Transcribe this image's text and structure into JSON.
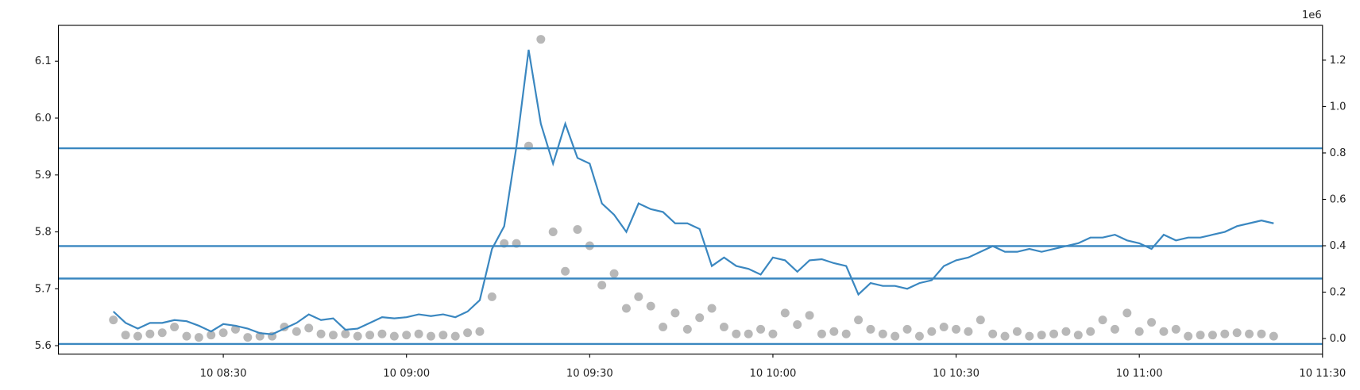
{
  "chart_data": {
    "type": "line",
    "x": [
      "10 08:12",
      "10 08:14",
      "10 08:16",
      "10 08:18",
      "10 08:20",
      "10 08:22",
      "10 08:24",
      "10 08:26",
      "10 08:28",
      "10 08:30",
      "10 08:32",
      "10 08:34",
      "10 08:36",
      "10 08:38",
      "10 08:40",
      "10 08:42",
      "10 08:44",
      "10 08:46",
      "10 08:48",
      "10 08:50",
      "10 08:52",
      "10 08:54",
      "10 08:56",
      "10 08:58",
      "10 09:00",
      "10 09:02",
      "10 09:04",
      "10 09:06",
      "10 09:08",
      "10 09:10",
      "10 09:12",
      "10 09:14",
      "10 09:16",
      "10 09:18",
      "10 09:20",
      "10 09:22",
      "10 09:24",
      "10 09:26",
      "10 09:28",
      "10 09:30",
      "10 09:32",
      "10 09:34",
      "10 09:36",
      "10 09:38",
      "10 09:40",
      "10 09:42",
      "10 09:44",
      "10 09:46",
      "10 09:48",
      "10 09:50",
      "10 09:52",
      "10 09:54",
      "10 09:56",
      "10 09:58",
      "10 10:00",
      "10 10:02",
      "10 10:04",
      "10 10:06",
      "10 10:08",
      "10 10:10",
      "10 10:12",
      "10 10:14",
      "10 10:16",
      "10 10:18",
      "10 10:20",
      "10 10:22",
      "10 10:24",
      "10 10:26",
      "10 10:28",
      "10 10:30",
      "10 10:32",
      "10 10:34",
      "10 10:36",
      "10 10:38",
      "10 10:40",
      "10 10:42",
      "10 10:44",
      "10 10:46",
      "10 10:48",
      "10 10:50",
      "10 10:52",
      "10 10:54",
      "10 10:56",
      "10 10:58",
      "10 11:00",
      "10 11:02",
      "10 11:04",
      "10 11:06",
      "10 11:08",
      "10 11:10",
      "10 11:12",
      "10 11:14",
      "10 11:16",
      "10 11:18",
      "10 11:20",
      "10 11:22"
    ],
    "series": [
      {
        "kind": "line",
        "color": "#3a87c0",
        "values": [
          5.66,
          5.64,
          5.63,
          5.64,
          5.64,
          5.645,
          5.643,
          5.635,
          5.625,
          5.638,
          5.635,
          5.63,
          5.622,
          5.62,
          5.63,
          5.64,
          5.655,
          5.645,
          5.648,
          5.628,
          5.63,
          5.64,
          5.65,
          5.648,
          5.65,
          5.655,
          5.652,
          5.655,
          5.65,
          5.66,
          5.68,
          5.77,
          5.81,
          5.95,
          6.12,
          5.99,
          5.92,
          5.99,
          5.93,
          5.92,
          5.85,
          5.83,
          5.8,
          5.85,
          5.84,
          5.835,
          5.815,
          5.815,
          5.805,
          5.74,
          5.755,
          5.74,
          5.735,
          5.725,
          5.755,
          5.75,
          5.73,
          5.75,
          5.752,
          5.745,
          5.74,
          5.69,
          5.71,
          5.705,
          5.705,
          5.7,
          5.71,
          5.715,
          5.74,
          5.75,
          5.755,
          5.765,
          5.775,
          5.765,
          5.765,
          5.77,
          5.765,
          5.77,
          5.775,
          5.78,
          5.79,
          5.79,
          5.795,
          5.785,
          5.78,
          5.77,
          5.795,
          5.785,
          5.79,
          5.79,
          5.795,
          5.8,
          5.81,
          5.815,
          5.82,
          5.815
        ]
      },
      {
        "kind": "scatter",
        "axis": "y2",
        "color": "#a0a0a0",
        "values": [
          80000,
          15000,
          10000,
          20000,
          25000,
          50000,
          10000,
          5000,
          15000,
          25000,
          40000,
          5000,
          10000,
          10000,
          50000,
          30000,
          45000,
          20000,
          15000,
          20000,
          10000,
          15000,
          20000,
          10000,
          15000,
          20000,
          10000,
          15000,
          10000,
          25000,
          30000,
          180000,
          410000,
          410000,
          830000,
          1290000,
          460000,
          290000,
          470000,
          400000,
          230000,
          280000,
          130000,
          180000,
          140000,
          50000,
          110000,
          40000,
          90000,
          130000,
          50000,
          20000,
          20000,
          40000,
          20000,
          110000,
          60000,
          100000,
          20000,
          30000,
          20000,
          80000,
          40000,
          20000,
          10000,
          40000,
          10000,
          30000,
          50000,
          40000,
          30000,
          80000,
          20000,
          10000,
          30000,
          10000,
          15000,
          20000,
          30000,
          15000,
          30000,
          80000,
          40000,
          110000,
          30000,
          70000,
          30000,
          40000,
          10000,
          15000,
          15000,
          20000,
          25000,
          20000,
          20000,
          10000
        ]
      }
    ],
    "hlines": [
      5.947,
      5.775,
      5.718,
      5.603
    ],
    "hline_color": "#3a87c0",
    "xlim": [
      "10 08:03",
      "10 11:30"
    ],
    "xticks": [
      "10 08:30",
      "10 09:00",
      "10 09:30",
      "10 10:00",
      "10 10:30",
      "10 11:00",
      "10 11:30"
    ],
    "ylim": [
      5.585,
      6.163
    ],
    "yticks": [
      5.6,
      5.7,
      5.8,
      5.9,
      {
        "value": 6,
        "label": "6.0"
      },
      6.1
    ],
    "y2lim": [
      -67500,
      1350000
    ],
    "y2ticks": [
      {
        "value": 0,
        "label": "0.0"
      },
      {
        "value": 200000,
        "label": "0.2"
      },
      {
        "value": 400000,
        "label": "0.4"
      },
      {
        "value": 600000,
        "label": "0.6"
      },
      {
        "value": 800000,
        "label": "0.8"
      },
      {
        "value": 1000000,
        "label": "1.0"
      },
      {
        "value": 1200000,
        "label": "1.2"
      }
    ],
    "y2_offset_label": "1e6"
  }
}
